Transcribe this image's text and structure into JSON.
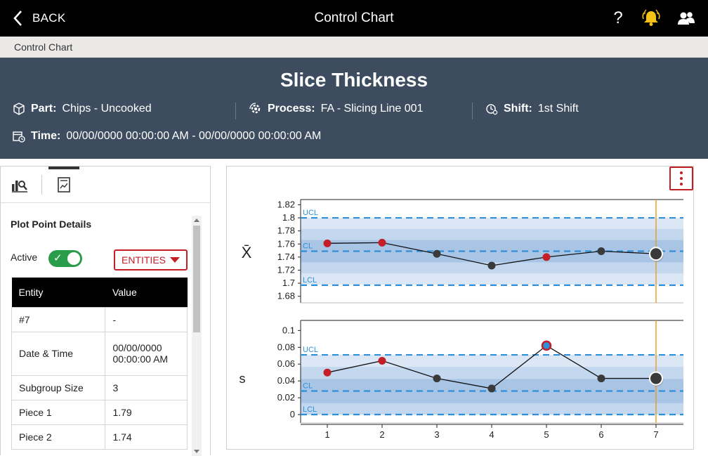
{
  "topbar": {
    "back_label": "BACK",
    "title": "Control Chart",
    "help_label": "?"
  },
  "breadcrumb": "Control Chart",
  "header": {
    "title": "Slice Thickness",
    "part_label": "Part:",
    "part_value": "Chips - Uncooked",
    "process_label": "Process:",
    "process_value": "FA - Slicing Line 001",
    "shift_label": "Shift:",
    "shift_value": "1st Shift",
    "time_label": "Time:",
    "time_value": "00/00/0000 00:00:00 AM - 00/00/0000 00:00:00 AM"
  },
  "panel": {
    "title": "Plot Point Details",
    "active_label": "Active",
    "active": true,
    "entities_label": "ENTITIES",
    "table_headers": [
      "Entity",
      "Value"
    ],
    "rows": [
      {
        "entity": "#7",
        "value": "-"
      },
      {
        "entity": "Date & Time",
        "value": "00/00/0000 00:00:00 AM"
      },
      {
        "entity": "Subgroup Size",
        "value": "3"
      },
      {
        "entity": "Piece 1",
        "value": "1.79"
      },
      {
        "entity": "Piece 2",
        "value": "1.74"
      }
    ]
  },
  "colors": {
    "accent_red": "#c41f27",
    "limit_blue": "#2f8fd8",
    "point_dark": "#3a3a3a",
    "point_red": "#c41f27",
    "cursor": "#e89a20",
    "header_bg": "#3d4d5f"
  },
  "chart_data": [
    {
      "type": "line",
      "ylabel": "X̄",
      "x": [
        1,
        2,
        3,
        4,
        5,
        6,
        7
      ],
      "values": [
        1.761,
        1.762,
        1.745,
        1.727,
        1.74,
        1.749,
        1.745
      ],
      "point_status": [
        "red",
        "red",
        "normal",
        "normal",
        "red",
        "normal",
        "selected"
      ],
      "yticks": [
        1.68,
        1.7,
        1.72,
        1.74,
        1.76,
        1.78,
        1.8,
        1.82
      ],
      "ylim": [
        1.67,
        1.828
      ],
      "ucl": 1.8,
      "cl": 1.749,
      "lcl": 1.697,
      "limit_labels": [
        "UCL",
        "CL",
        "LCL"
      ],
      "cursor_x": 7
    },
    {
      "type": "line",
      "ylabel": "s",
      "x": [
        1,
        2,
        3,
        4,
        5,
        6,
        7
      ],
      "values": [
        0.05,
        0.064,
        0.043,
        0.031,
        0.082,
        0.043,
        0.043
      ],
      "point_status": [
        "red",
        "red",
        "normal",
        "normal",
        "red-blue",
        "normal",
        "selected"
      ],
      "yticks": [
        0,
        0.02,
        0.04,
        0.06,
        0.08,
        0.1
      ],
      "ylim": [
        -0.01,
        0.112
      ],
      "ucl": 0.071,
      "cl": 0.028,
      "lcl": 0,
      "limit_labels": [
        "UCL",
        "CL",
        "LCL"
      ],
      "xticks": [
        "1",
        "2",
        "3",
        "4",
        "5",
        "6",
        "7"
      ],
      "cursor_x": 7
    }
  ]
}
